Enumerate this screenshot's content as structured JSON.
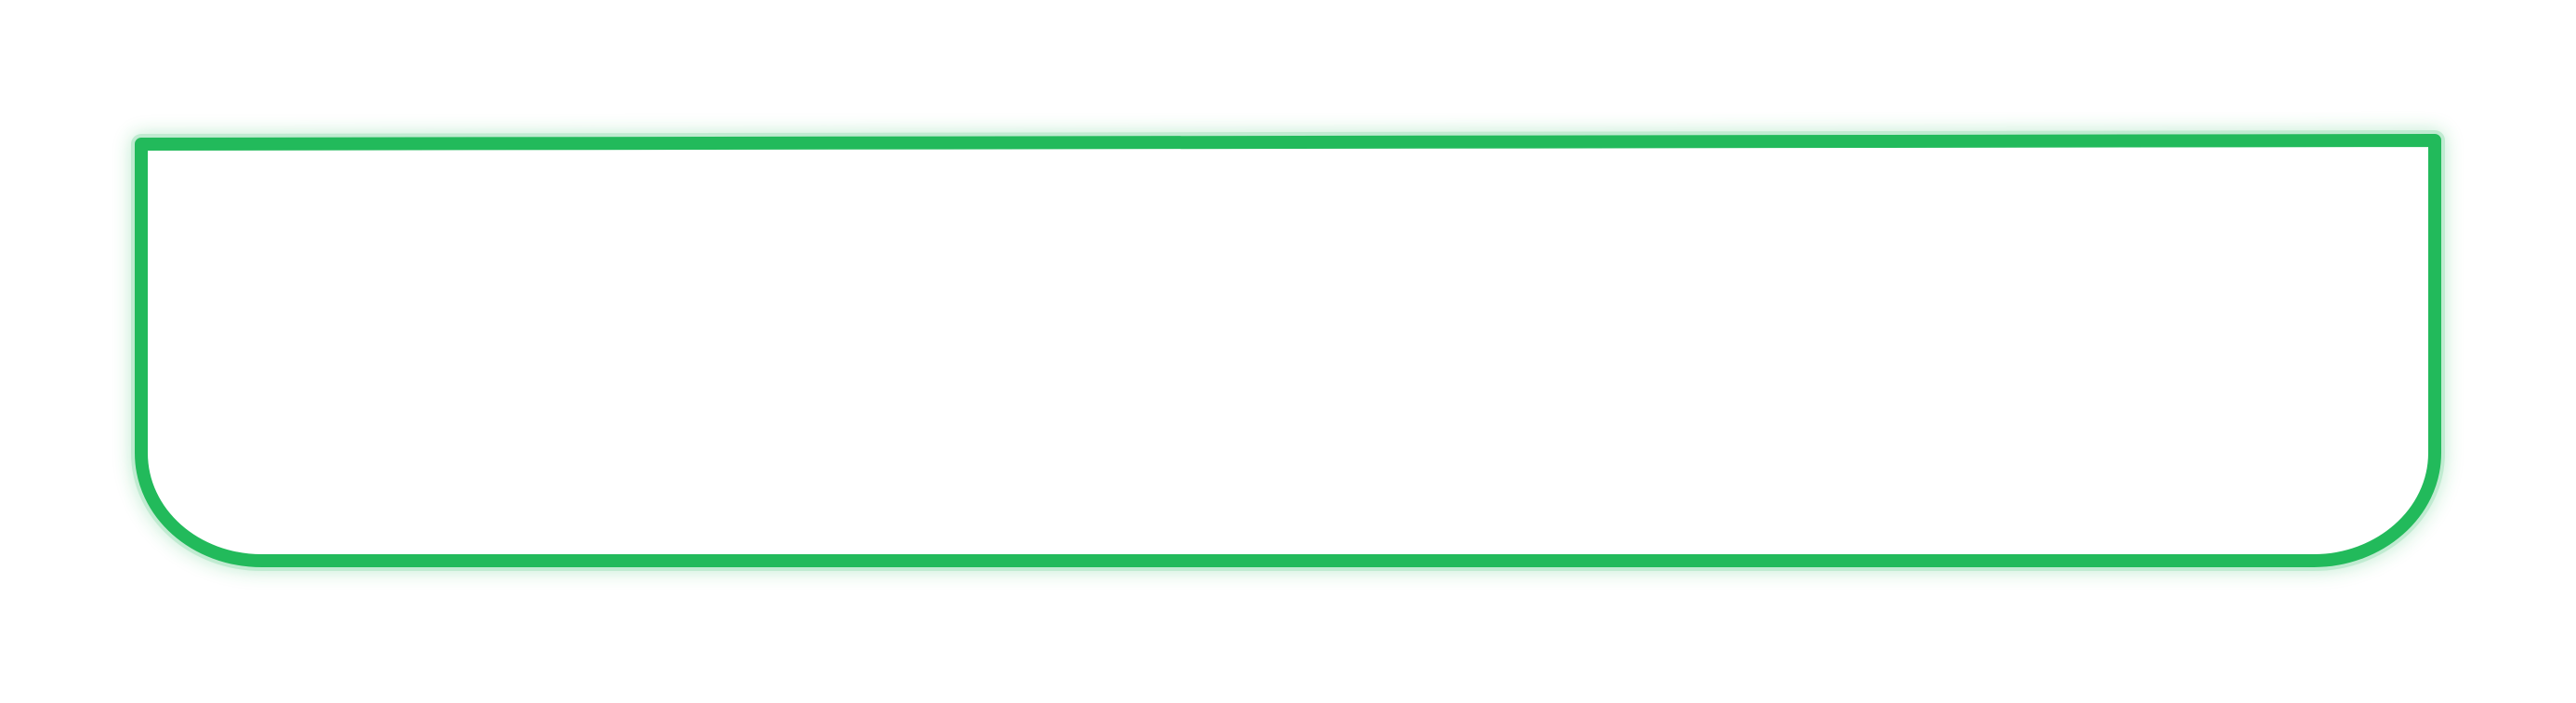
{
  "frame": {
    "stroke_color": "#22BA5B",
    "glow_color": "#22BA5B",
    "fill_color": "#FFFFFF"
  }
}
